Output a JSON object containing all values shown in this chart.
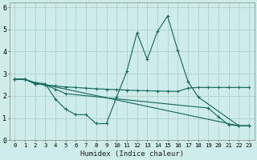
{
  "xlabel": "Humidex (Indice chaleur)",
  "ylabel": "",
  "bg_color": "#ceecea",
  "grid_color": "#aed0cc",
  "line_color": "#1a6b60",
  "xlim": [
    -0.5,
    23.5
  ],
  "ylim": [
    0,
    6.2
  ],
  "xticks": [
    0,
    1,
    2,
    3,
    4,
    5,
    6,
    7,
    8,
    9,
    10,
    11,
    12,
    13,
    14,
    15,
    16,
    17,
    18,
    19,
    20,
    21,
    22,
    23
  ],
  "yticks": [
    0,
    1,
    2,
    3,
    4,
    5,
    6
  ],
  "series": [
    {
      "x": [
        0,
        1,
        2,
        3,
        4,
        5,
        6,
        7,
        8,
        9,
        10,
        11,
        12,
        13,
        14,
        15,
        16,
        17,
        18,
        22,
        23
      ],
      "y": [
        2.75,
        2.75,
        2.6,
        2.55,
        1.85,
        1.4,
        1.15,
        1.15,
        0.75,
        0.75,
        1.95,
        3.1,
        4.85,
        3.65,
        4.9,
        5.6,
        4.05,
        2.65,
        1.95,
        0.65,
        0.65
      ]
    },
    {
      "x": [
        0,
        1,
        2,
        3,
        4,
        5,
        6,
        7,
        8,
        9,
        10,
        11,
        12,
        13,
        14,
        15,
        16,
        17,
        18,
        19,
        20,
        21,
        22,
        23
      ],
      "y": [
        2.75,
        2.75,
        2.55,
        2.5,
        2.45,
        2.4,
        2.38,
        2.35,
        2.32,
        2.3,
        2.28,
        2.26,
        2.24,
        2.23,
        2.22,
        2.21,
        2.2,
        2.35,
        2.38,
        2.38,
        2.38,
        2.38,
        2.38,
        2.38
      ]
    },
    {
      "x": [
        0,
        1,
        2,
        3,
        4,
        5,
        19,
        20,
        21,
        22,
        23
      ],
      "y": [
        2.75,
        2.75,
        2.55,
        2.5,
        2.3,
        2.1,
        1.45,
        1.05,
        0.7,
        0.65,
        0.65
      ]
    },
    {
      "x": [
        0,
        1,
        2,
        3,
        22,
        23
      ],
      "y": [
        2.75,
        2.75,
        2.55,
        2.5,
        0.65,
        0.65
      ]
    }
  ]
}
